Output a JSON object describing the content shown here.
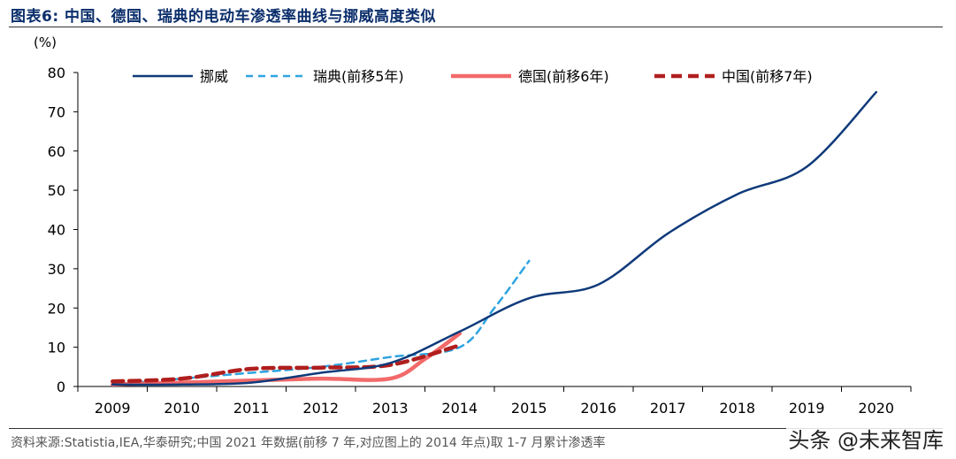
{
  "figure_title": "图表6:   中国、德国、瑞典的电动车渗透率曲线与挪威高度类似",
  "source_note": "资料来源:Statistia,IEA,华泰研究;中国 2021 年数据(前移 7 年,对应图上的 2014 年点)取 1-7 月累计渗透率",
  "watermark": "头条 @未来智库",
  "colors": {
    "title": "#0b2e6b",
    "norway": "#0f3a7a",
    "sweden": "#2fa4e0",
    "germany": "#f26a6a",
    "china": "#b01e1e"
  },
  "chart_data": {
    "type": "line",
    "ylabel": "(%)",
    "xlabel": "",
    "ylim": [
      0,
      80
    ],
    "yticks": [
      0,
      10,
      20,
      30,
      40,
      50,
      60,
      70,
      80
    ],
    "categories": [
      "2009",
      "2010",
      "2011",
      "2012",
      "2013",
      "2014",
      "2015",
      "2016",
      "2017",
      "2018",
      "2019",
      "2020"
    ],
    "grid": false,
    "legend_position": "top",
    "series": [
      {
        "name": "挪威",
        "style": "solid",
        "color": "#0f3a7a",
        "x": [
          2009,
          2010,
          2011,
          2012,
          2013,
          2014,
          2015,
          2016,
          2017,
          2018,
          2019,
          2020
        ],
        "y": [
          0.5,
          0.5,
          1.0,
          3.5,
          6.0,
          14.0,
          22.5,
          26.0,
          39.0,
          49.0,
          56.0,
          75.0
        ]
      },
      {
        "name": "瑞典(前移5年)",
        "style": "dashed",
        "color": "#2fa4e0",
        "x": [
          2009,
          2010,
          2011,
          2012,
          2013,
          2014,
          2014.5,
          2015
        ],
        "y": [
          0.5,
          2.0,
          3.5,
          5.0,
          7.5,
          10.0,
          20.0,
          32.0
        ]
      },
      {
        "name": "德国(前移6年)",
        "style": "solid-thick",
        "color": "#f26a6a",
        "x": [
          2009,
          2010,
          2011,
          2012,
          2013,
          2013.5,
          2014
        ],
        "y": [
          0.5,
          1.0,
          1.5,
          2.0,
          2.0,
          7.0,
          13.5
        ]
      },
      {
        "name": "中国(前移7年)",
        "style": "dashed-thick",
        "color": "#b01e1e",
        "x": [
          2009,
          2010,
          2011,
          2012,
          2013,
          2014
        ],
        "y": [
          1.3,
          2.0,
          4.5,
          4.8,
          5.5,
          10.5
        ]
      }
    ]
  }
}
